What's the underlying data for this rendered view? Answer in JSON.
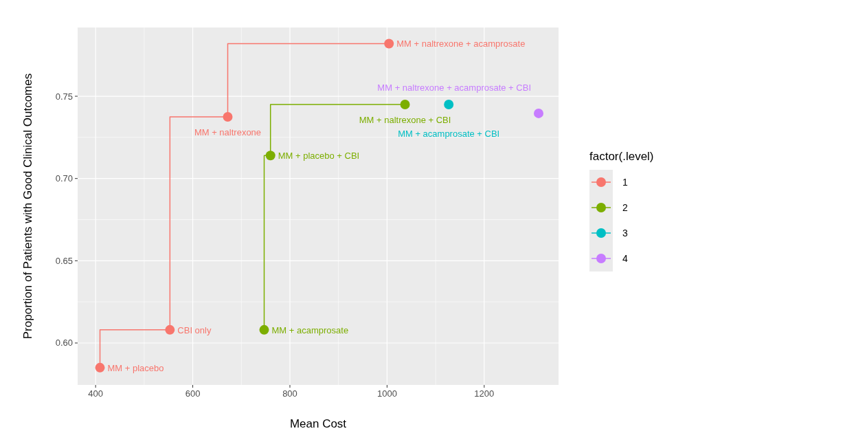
{
  "chart_data": {
    "type": "step",
    "xlabel": "Mean Cost",
    "ylabel": "Proportion of Patients with Good Clinical Outcomes",
    "legend_title": "factor(.level)",
    "legend": "right",
    "grid": true,
    "marker": "circle",
    "xlim": [
      363,
      1353
    ],
    "ylim": [
      0.5745,
      0.7918
    ],
    "xticks": [
      400,
      600,
      800,
      1000,
      1200
    ],
    "yticks": [
      {
        "value": 0.6,
        "label": "0.60"
      },
      {
        "value": 0.65,
        "label": "0.65"
      },
      {
        "value": 0.7,
        "label": "0.70"
      },
      {
        "value": 0.75,
        "label": "0.75"
      }
    ],
    "series": [
      {
        "name": "1",
        "color": "#f8766d",
        "x": [
          409,
          553,
          672,
          1004
        ],
        "values": [
          0.585,
          0.608,
          0.7375,
          0.782
        ]
      },
      {
        "name": "2",
        "color": "#7cae00",
        "x": [
          747,
          760,
          1037
        ],
        "values": [
          0.608,
          0.714,
          0.745
        ]
      },
      {
        "name": "3",
        "color": "#00bfc4",
        "x": [
          1127
        ],
        "values": [
          0.745
        ]
      },
      {
        "name": "4",
        "color": "#c77cff",
        "x": [
          1312
        ],
        "values": [
          0.7396
        ]
      }
    ],
    "annotations": [
      {
        "text": "MM + placebo",
        "x": 409,
        "y": 0.585
      },
      {
        "text": "CBI only",
        "x": 553,
        "y": 0.608
      },
      {
        "text": "MM + naltrexone",
        "x": 672,
        "y": 0.7375
      },
      {
        "text": "MM + naltrexone + acamprosate",
        "x": 1004,
        "y": 0.782
      },
      {
        "text": "MM + acamprosate",
        "x": 747,
        "y": 0.608
      },
      {
        "text": "MM + placebo + CBI",
        "x": 760,
        "y": 0.714
      },
      {
        "text": "MM + naltrexone + CBI",
        "x": 1037,
        "y": 0.745
      },
      {
        "text": "MM + acamprosate + CBI",
        "x": 1127,
        "y": 0.745
      },
      {
        "text": "MM + naltrexone + acamprosate + CBI",
        "x": 1312,
        "y": 0.7396
      }
    ]
  }
}
